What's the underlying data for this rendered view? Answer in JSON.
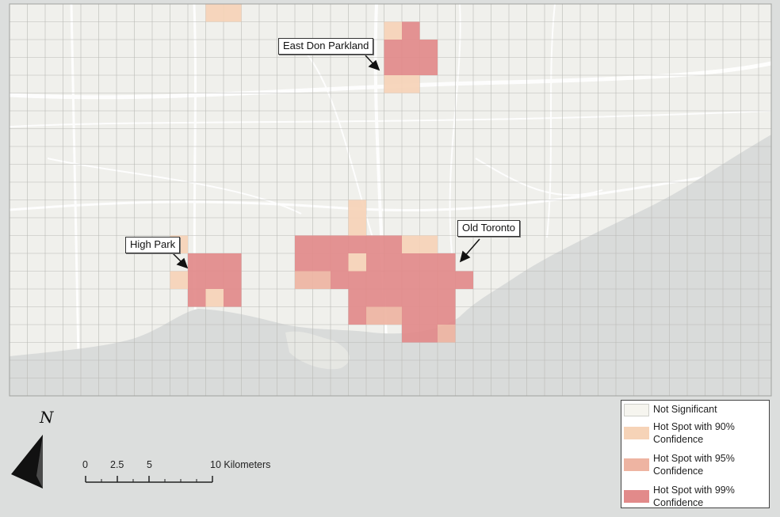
{
  "callouts": {
    "east_don": "East Don Parkland",
    "high_park": "High Park",
    "old_toronto": "Old Toronto"
  },
  "legend": {
    "items": [
      {
        "label": "Not Significant",
        "color": "#f6f5ef"
      },
      {
        "label": "Hot Spot with 90% Confidence",
        "color": "#f6d3b7"
      },
      {
        "label": "Hot Spot with 95% Confidence",
        "color": "#eeb4a2"
      },
      {
        "label": "Hot Spot with 99% Confidence",
        "color": "#e28a8a"
      }
    ]
  },
  "scale_bar": {
    "ticks": [
      "0",
      "2.5",
      "5",
      "10 Kilometers"
    ]
  },
  "north_arrow": {
    "label": "N",
    "icon": "north-arrow-icon"
  },
  "colors": {
    "land": "#f0f0ec",
    "water": "#d9dbda",
    "outside": "#dcdedd",
    "grid": "#b9bab6",
    "roads": "#ffffff"
  }
}
